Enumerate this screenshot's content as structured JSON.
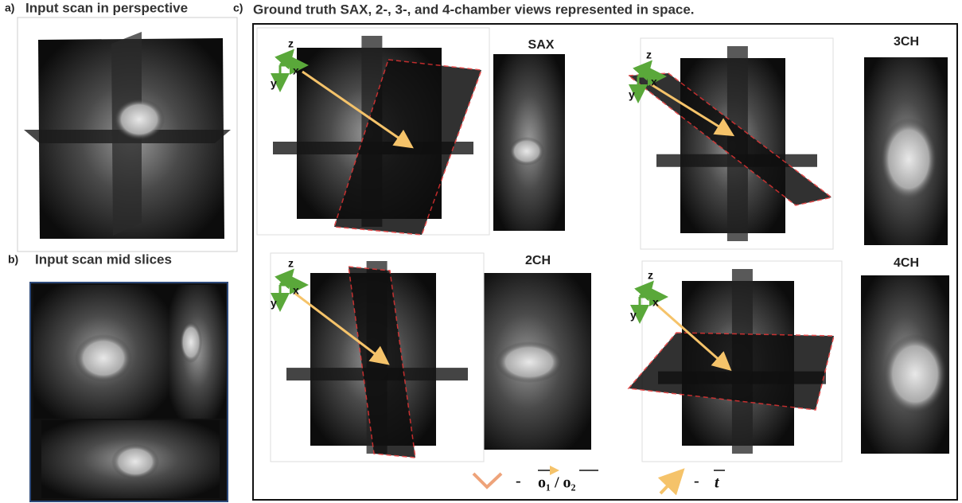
{
  "panels": [
    {
      "letter": "a)",
      "title": "Input scan in perspective"
    },
    {
      "letter": "b)",
      "title": "Input scan mid slices"
    },
    {
      "letter": "c)",
      "title": "Ground truth SAX, 2-, 3-, and 4-chamber views represented in space."
    }
  ],
  "views": [
    {
      "label": "SAX"
    },
    {
      "label": "2CH"
    },
    {
      "label": "3CH"
    },
    {
      "label": "4CH"
    }
  ],
  "axis_labels": {
    "z": "z",
    "x": "x",
    "y": "y"
  },
  "legend": [
    {
      "dash": "-",
      "label": "o₁ / o₂"
    },
    {
      "dash": "-",
      "label": "t"
    }
  ]
}
